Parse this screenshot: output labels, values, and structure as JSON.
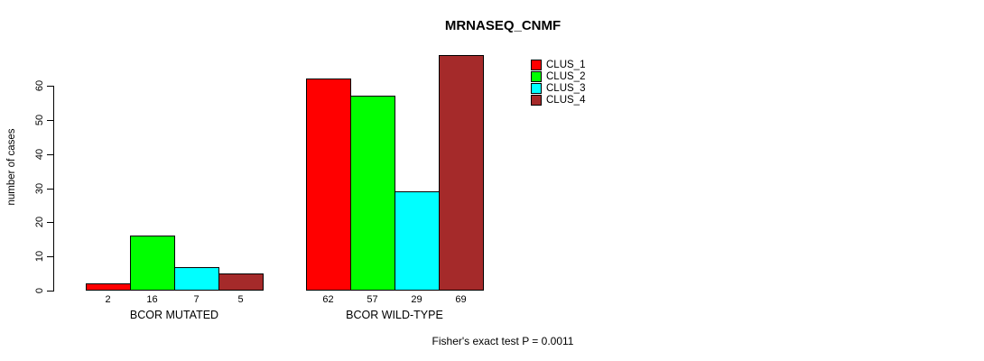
{
  "chart_data": {
    "type": "bar",
    "title": "MRNASEQ_CNMF",
    "ylabel": "number of cases",
    "xlabel": "",
    "groups": [
      "BCOR MUTATED",
      "BCOR WILD-TYPE"
    ],
    "series": [
      {
        "name": "CLUS_1",
        "color": "#FF0000",
        "values": [
          2,
          62
        ]
      },
      {
        "name": "CLUS_2",
        "color": "#00FF00",
        "values": [
          16,
          57
        ]
      },
      {
        "name": "CLUS_3",
        "color": "#00FFFF",
        "values": [
          7,
          29
        ]
      },
      {
        "name": "CLUS_4",
        "color": "#A52A2A",
        "values": [
          5,
          69
        ]
      }
    ],
    "bar_value_labels": [
      [
        2,
        16,
        7,
        5
      ],
      [
        62,
        57,
        29,
        69
      ]
    ],
    "ylim": [
      0,
      60
    ],
    "yticks": [
      0,
      10,
      20,
      30,
      40,
      50,
      60
    ],
    "grid": false,
    "legend_position": "top-right",
    "annotation": "Fisher's exact test P = 0.0011",
    "bar_border_color": "#000000",
    "axis_color": "#000000"
  }
}
